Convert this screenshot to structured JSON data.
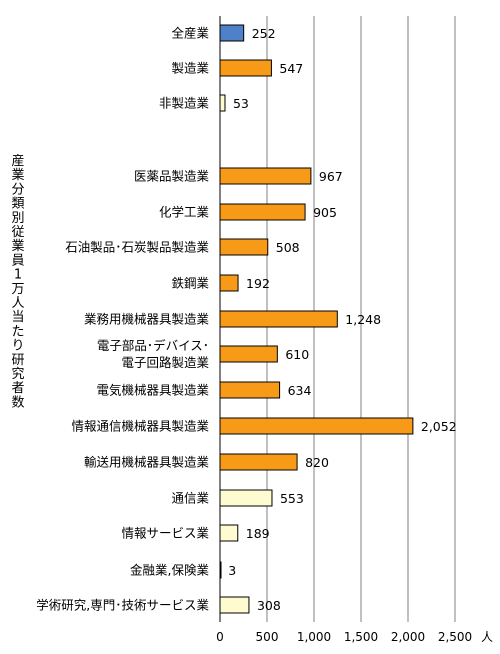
{
  "chart_data": {
    "type": "bar",
    "orientation": "horizontal",
    "ylabel_vertical": "産業分類別従業員1万人当たり研究者数",
    "unit": "人",
    "xlim": [
      0,
      2500
    ],
    "x_ticks": [
      0,
      500,
      1000,
      1500,
      2000,
      2500
    ],
    "x_tick_labels": [
      "0",
      "500",
      "1,000",
      "1,500",
      "2,000",
      "2,500"
    ],
    "grid": "vertical",
    "colors": {
      "total": "#4f81c9",
      "manufacturing": "#f79a18",
      "non_manufacturing": "#fefbd0",
      "grid": "#808080",
      "bar_border": "#000000"
    },
    "categories": [
      {
        "label": [
          "全産業"
        ],
        "value": 252,
        "value_label": "252",
        "group": "total"
      },
      {
        "label": [
          "製造業"
        ],
        "value": 547,
        "value_label": "547",
        "group": "manufacturing"
      },
      {
        "label": [
          "非製造業"
        ],
        "value": 53,
        "value_label": "53",
        "group": "non_manufacturing"
      },
      {
        "label": [
          "医薬品製造業"
        ],
        "value": 967,
        "value_label": "967",
        "group": "manufacturing"
      },
      {
        "label": [
          "化学工業"
        ],
        "value": 905,
        "value_label": "905",
        "group": "manufacturing"
      },
      {
        "label": [
          "石油製品･石炭製品製造業"
        ],
        "value": 508,
        "value_label": "508",
        "group": "manufacturing"
      },
      {
        "label": [
          "鉄鋼業"
        ],
        "value": 192,
        "value_label": "192",
        "group": "manufacturing"
      },
      {
        "label": [
          "業務用機械器具製造業"
        ],
        "value": 1248,
        "value_label": "1,248",
        "group": "manufacturing"
      },
      {
        "label": [
          "電子部品･デバイス･",
          "電子回路製造業"
        ],
        "value": 610,
        "value_label": "610",
        "group": "manufacturing"
      },
      {
        "label": [
          "電気機械器具製造業"
        ],
        "value": 634,
        "value_label": "634",
        "group": "manufacturing"
      },
      {
        "label": [
          "情報通信機械器具製造業"
        ],
        "value": 2052,
        "value_label": "2,052",
        "group": "manufacturing"
      },
      {
        "label": [
          "輸送用機械器具製造業"
        ],
        "value": 820,
        "value_label": "820",
        "group": "manufacturing"
      },
      {
        "label": [
          "通信業"
        ],
        "value": 553,
        "value_label": "553",
        "group": "non_manufacturing"
      },
      {
        "label": [
          "情報サービス業"
        ],
        "value": 189,
        "value_label": "189",
        "group": "non_manufacturing"
      },
      {
        "label": [
          "金融業,保険業"
        ],
        "value": 3,
        "value_label": "3",
        "group": "non_manufacturing"
      },
      {
        "label": [
          "学術研究,専門･技術サービス業"
        ],
        "value": 308,
        "value_label": "308",
        "group": "non_manufacturing"
      }
    ]
  }
}
